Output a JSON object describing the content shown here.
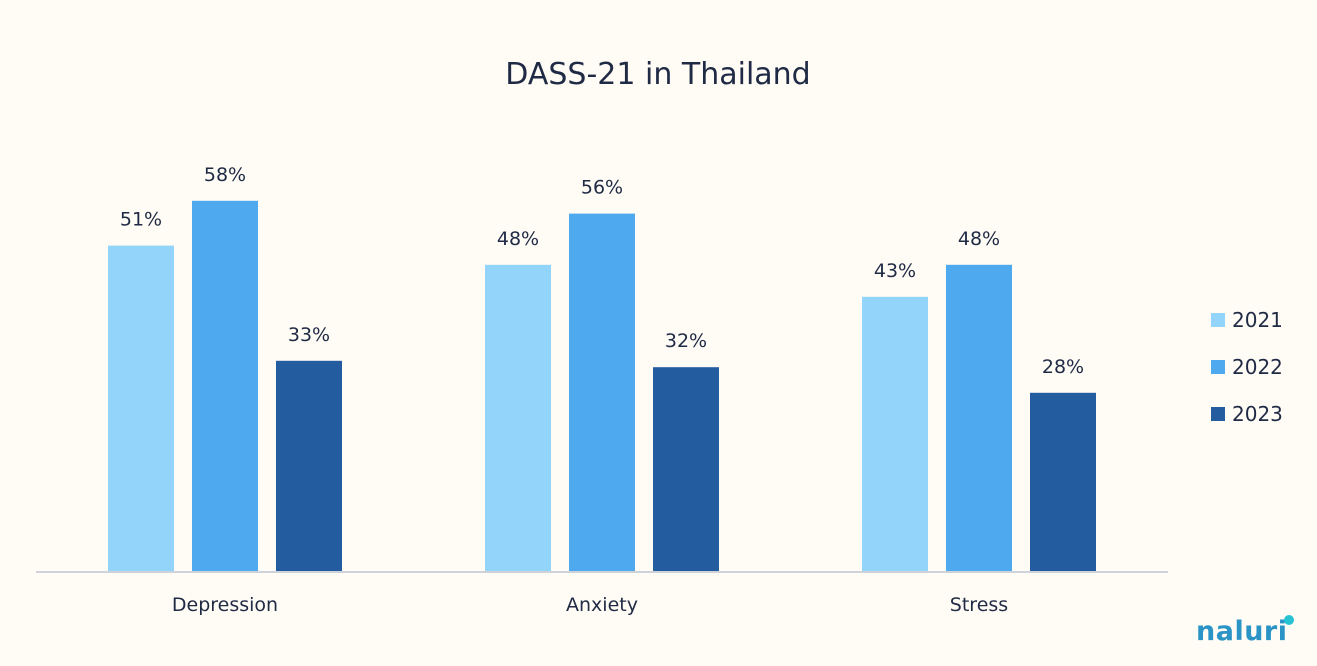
{
  "chart_data": {
    "type": "bar",
    "title": "DASS-21 in Thailand",
    "categories": [
      "Depression",
      "Anxiety",
      "Stress"
    ],
    "series": [
      {
        "name": "2021",
        "values": [
          51,
          48,
          43
        ],
        "color": "#93d5fa"
      },
      {
        "name": "2022",
        "values": [
          58,
          56,
          48
        ],
        "color": "#4ea9ee"
      },
      {
        "name": "2023",
        "values": [
          33,
          32,
          28
        ],
        "color": "#245d9f"
      }
    ],
    "value_format": "{v}%",
    "ylim": [
      0,
      65
    ],
    "grid": false,
    "legend_position": "right",
    "axis_color": "#cfd3d9"
  },
  "logo": {
    "text": "naluri",
    "color": "#2b94c6",
    "accent_color": "#27c3d3"
  }
}
